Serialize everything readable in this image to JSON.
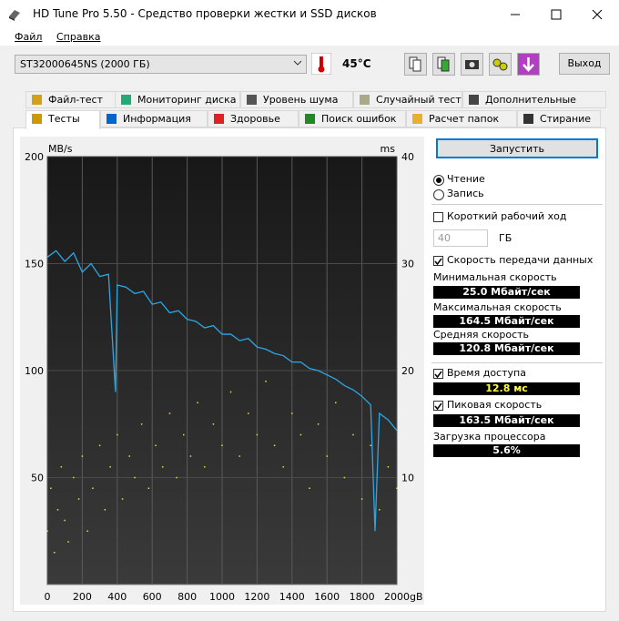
{
  "window": {
    "title": "HD Tune Pro 5.50 - Средство проверки жестки и SSD дисков"
  },
  "menu": [
    "Файл",
    "Справка"
  ],
  "toolbar": {
    "drive": "ST32000645NS (2000 ГБ)",
    "temperature": "45°C",
    "exit": "Выход"
  },
  "tabs": {
    "row1": [
      "Файл-тест",
      "Мониторинг диска",
      "Уровень шума",
      "Случайный тест",
      "Дополнительные тесты"
    ],
    "row2": [
      "Тесты",
      "Информация",
      "Здоровье",
      "Поиск ошибок",
      "Расчет папок",
      "Стирание"
    ]
  },
  "panel": {
    "start": "Запустить",
    "modes": [
      {
        "label": "Чтение",
        "checked": true
      },
      {
        "label": "Запись",
        "checked": false
      }
    ],
    "short_stroke": {
      "label": "Короткий рабочий ход",
      "checked": false
    },
    "stroke_size": "40",
    "stroke_unit": "ГБ",
    "transfer": {
      "label": "Скорость передачи данных",
      "checked": true
    },
    "min_label": "Минимальная скорость",
    "min_value": "25.0 Мбайт/сек",
    "max_label": "Максимальная скорость",
    "max_value": "164.5 Мбайт/сек",
    "avg_label": "Средняя скорость",
    "avg_value": "120.8 Мбайт/сек",
    "access": {
      "label": "Время доступа",
      "checked": true
    },
    "access_value": "12.8 мс",
    "burst": {
      "label": "Пиковая скорость",
      "checked": true
    },
    "burst_value": "163.5 Мбайт/сек",
    "cpu_label": "Загрузка процессора",
    "cpu_value": "5.6%"
  },
  "chart_data": {
    "type": "line",
    "ylabel": "MB/s",
    "y2label": "ms",
    "xlim": [
      0,
      2000
    ],
    "xticks": [
      0,
      200,
      400,
      600,
      800,
      1000,
      1200,
      1400,
      1600,
      1800,
      {
        "value": 2000,
        "label": "2000gB"
      }
    ],
    "ylim": [
      0,
      200
    ],
    "yticks": [
      50,
      100,
      150,
      200
    ],
    "y2lim": [
      0,
      40
    ],
    "y2ticks": [
      10,
      20,
      30,
      40
    ],
    "grid": true,
    "series": [
      {
        "type": "line",
        "color": "#2aa8e6",
        "x": [
          0,
          50,
          100,
          150,
          200,
          250,
          300,
          350,
          390,
          400,
          450,
          500,
          550,
          600,
          650,
          700,
          750,
          800,
          850,
          900,
          950,
          1000,
          1050,
          1100,
          1150,
          1200,
          1250,
          1300,
          1350,
          1400,
          1450,
          1500,
          1550,
          1600,
          1650,
          1700,
          1750,
          1800,
          1850,
          1875,
          1900,
          1950,
          2000
        ],
        "values": [
          153,
          156,
          151,
          155,
          146,
          150,
          144,
          145,
          90,
          140,
          139,
          136,
          137,
          131,
          132,
          127,
          128,
          124,
          123,
          120,
          121,
          117,
          117,
          114,
          115,
          111,
          110,
          108,
          107,
          104,
          104,
          101,
          100,
          98,
          96,
          93,
          91,
          88,
          84,
          25,
          80,
          77,
          72
        ]
      },
      {
        "type": "scatter",
        "axis": "y2",
        "color": "#e2e23a",
        "x": [
          0,
          20,
          40,
          60,
          80,
          100,
          120,
          150,
          180,
          200,
          230,
          260,
          300,
          330,
          360,
          400,
          430,
          470,
          500,
          540,
          580,
          620,
          660,
          700,
          740,
          780,
          820,
          860,
          900,
          950,
          1000,
          1050,
          1100,
          1150,
          1200,
          1250,
          1300,
          1350,
          1400,
          1450,
          1500,
          1550,
          1600,
          1650,
          1700,
          1750,
          1800,
          1850,
          1900,
          1950,
          2000
        ],
        "values": [
          5,
          9,
          3,
          7,
          11,
          6,
          4,
          10,
          8,
          12,
          5,
          9,
          13,
          7,
          11,
          14,
          8,
          12,
          10,
          15,
          9,
          13,
          11,
          16,
          10,
          14,
          12,
          17,
          11,
          15,
          13,
          18,
          12,
          16,
          14,
          19,
          13,
          11,
          16,
          14,
          9,
          15,
          12,
          17,
          10,
          14,
          8,
          13,
          7,
          11,
          9
        ]
      }
    ]
  }
}
